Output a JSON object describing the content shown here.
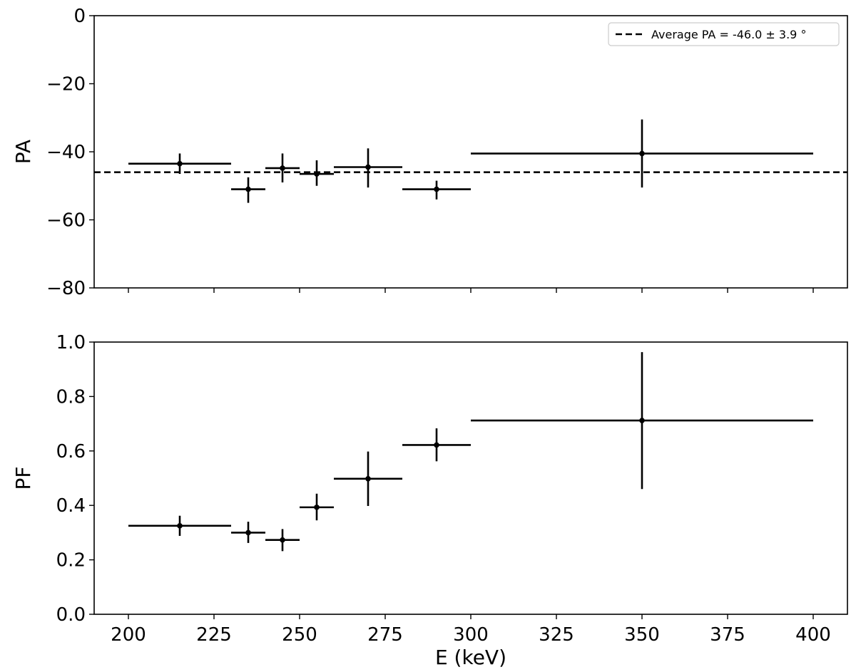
{
  "chart_data": [
    {
      "type": "scatter",
      "panel": "top",
      "xlabel": "",
      "ylabel": "PA",
      "xlim": [
        190,
        410
      ],
      "ylim": [
        -80,
        0
      ],
      "x_ticks": [
        200,
        225,
        250,
        275,
        300,
        325,
        350,
        375,
        400
      ],
      "y_ticks": [
        0,
        -20,
        -40,
        -60,
        -80
      ],
      "y_tick_labels": [
        "0",
        "−20",
        "−40",
        "−60",
        "−80"
      ],
      "grid": false,
      "legend_position": "top-right",
      "series": [
        {
          "points": [
            {
              "x": 215,
              "xlo": 200,
              "xhi": 230,
              "y": -43.5,
              "ylo": -46.5,
              "yhi": -40.5
            },
            {
              "x": 235,
              "xlo": 230,
              "xhi": 240,
              "y": -51.0,
              "ylo": -55.0,
              "yhi": -47.5
            },
            {
              "x": 245,
              "xlo": 240,
              "xhi": 250,
              "y": -44.8,
              "ylo": -49.0,
              "yhi": -40.5
            },
            {
              "x": 255,
              "xlo": 250,
              "xhi": 260,
              "y": -46.5,
              "ylo": -50.0,
              "yhi": -42.5
            },
            {
              "x": 270,
              "xlo": 260,
              "xhi": 280,
              "y": -44.5,
              "ylo": -50.5,
              "yhi": -39.0
            },
            {
              "x": 290,
              "xlo": 280,
              "xhi": 300,
              "y": -51.0,
              "ylo": -54.0,
              "yhi": -48.5
            },
            {
              "x": 350,
              "xlo": 300,
              "xhi": 400,
              "y": -40.5,
              "ylo": -50.5,
              "yhi": -30.5
            }
          ]
        }
      ],
      "reference_line": {
        "y": -46.0,
        "style": "dashed",
        "label": "Average PA = -46.0 ± 3.9 °"
      }
    },
    {
      "type": "scatter",
      "panel": "bottom",
      "xlabel": "E (keV)",
      "ylabel": "PF",
      "xlim": [
        190,
        410
      ],
      "ylim": [
        0.0,
        1.0
      ],
      "x_ticks": [
        200,
        225,
        250,
        275,
        300,
        325,
        350,
        375,
        400
      ],
      "y_ticks": [
        0.0,
        0.2,
        0.4,
        0.6,
        0.8,
        1.0
      ],
      "y_tick_labels": [
        "0.0",
        "0.2",
        "0.4",
        "0.6",
        "0.8",
        "1.0"
      ],
      "grid": false,
      "series": [
        {
          "points": [
            {
              "x": 215,
              "xlo": 200,
              "xhi": 230,
              "y": 0.325,
              "ylo": 0.288,
              "yhi": 0.362
            },
            {
              "x": 235,
              "xlo": 230,
              "xhi": 240,
              "y": 0.3,
              "ylo": 0.262,
              "yhi": 0.34
            },
            {
              "x": 245,
              "xlo": 240,
              "xhi": 250,
              "y": 0.273,
              "ylo": 0.232,
              "yhi": 0.313
            },
            {
              "x": 255,
              "xlo": 250,
              "xhi": 260,
              "y": 0.393,
              "ylo": 0.345,
              "yhi": 0.443
            },
            {
              "x": 270,
              "xlo": 260,
              "xhi": 280,
              "y": 0.498,
              "ylo": 0.398,
              "yhi": 0.598
            },
            {
              "x": 290,
              "xlo": 280,
              "xhi": 300,
              "y": 0.622,
              "ylo": 0.562,
              "yhi": 0.683
            },
            {
              "x": 350,
              "xlo": 300,
              "xhi": 400,
              "y": 0.712,
              "ylo": 0.46,
              "yhi": 0.963
            }
          ]
        }
      ]
    }
  ]
}
